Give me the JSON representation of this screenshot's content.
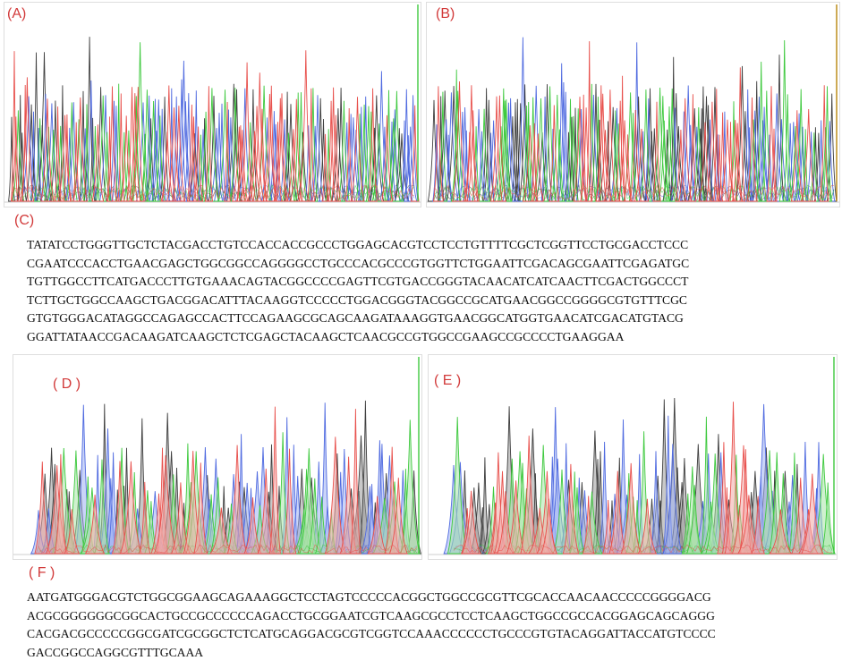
{
  "panels": {
    "A": {
      "label": "(A)"
    },
    "B": {
      "label": "(B)"
    },
    "C": {
      "label": "(C)",
      "sequence_lines": [
        "TATATCCTGGGTTGCTCTACGACCTGTCCACCACCGCCCTGGAGCACGTCCTCCTGTTTTCGCTCGGTTCCTGCGACCTCCC",
        "CGAATCCCACCTGAACGAGCTGGCGGCCAGGGGCCTGCCCACGCCCGTGGTTCTGGAATTCGACAGCGAATTCGAGATGC",
        "TGTTGGCCTTCATGACCCTTGTGAAACAGTACGGCCCCGAGTTCGTGACCGGGTACAACATCATCAACTTCGACTGGCCCT",
        "TCTTGCTGGCCAAGCTGACGGACATTTACAAGGTCCCCCTGGACGGGTACGGCCGCATGAACGGCCGGGGCGTGTTTCGC",
        "GTGTGGGACATAGGCCAGAGCCACTTCCAGAAGCGCAGCAAGATAAAGGTGAACGGCATGGTGAACATCGACATGTACG",
        "GGATTATAACCGACAAGATCAAGCTCTCGAGCTACAAGCTCAACGCCGTGGCCGAAGCCGCCCCTGAAGGAA"
      ]
    },
    "D": {
      "label": "( D )"
    },
    "E": {
      "label": "( E )"
    },
    "F": {
      "label": "( F )",
      "sequence_lines": [
        "AATGATGGGACGTCTGGCGGAAGCAGAAAGGCTCCTAGTCCCCCACGGCTGGCCGCGTTCGCACCAACAACCCCCGGGGACG",
        "ACGCGGGGGGCGGCACTGCCGCCCCCCAGACCTGCGGAATCGTCAAGCGCCTCCTCAAGCTGGCCGCCACGGAGCAGCAGGG",
        "CACGACGCCCCCGGCGATCGCGGCTCTCATGCAGGACGCGTCGGTCCAAACCCCCCTGCCCGTGTACAGGATTACCATGTCCCC",
        "GACCGGCCAGGCGTTTGCAAA"
      ]
    }
  },
  "trace_colors": {
    "A": "#3f3f3f",
    "C": "#4f6ae0",
    "G": "#3ec93e",
    "T": "#e8504c"
  },
  "trace_fills": {
    "A": "#9a9a9a",
    "C": "#9fb0f2",
    "G": "#a7e6a7",
    "T": "#f2a8a6"
  }
}
